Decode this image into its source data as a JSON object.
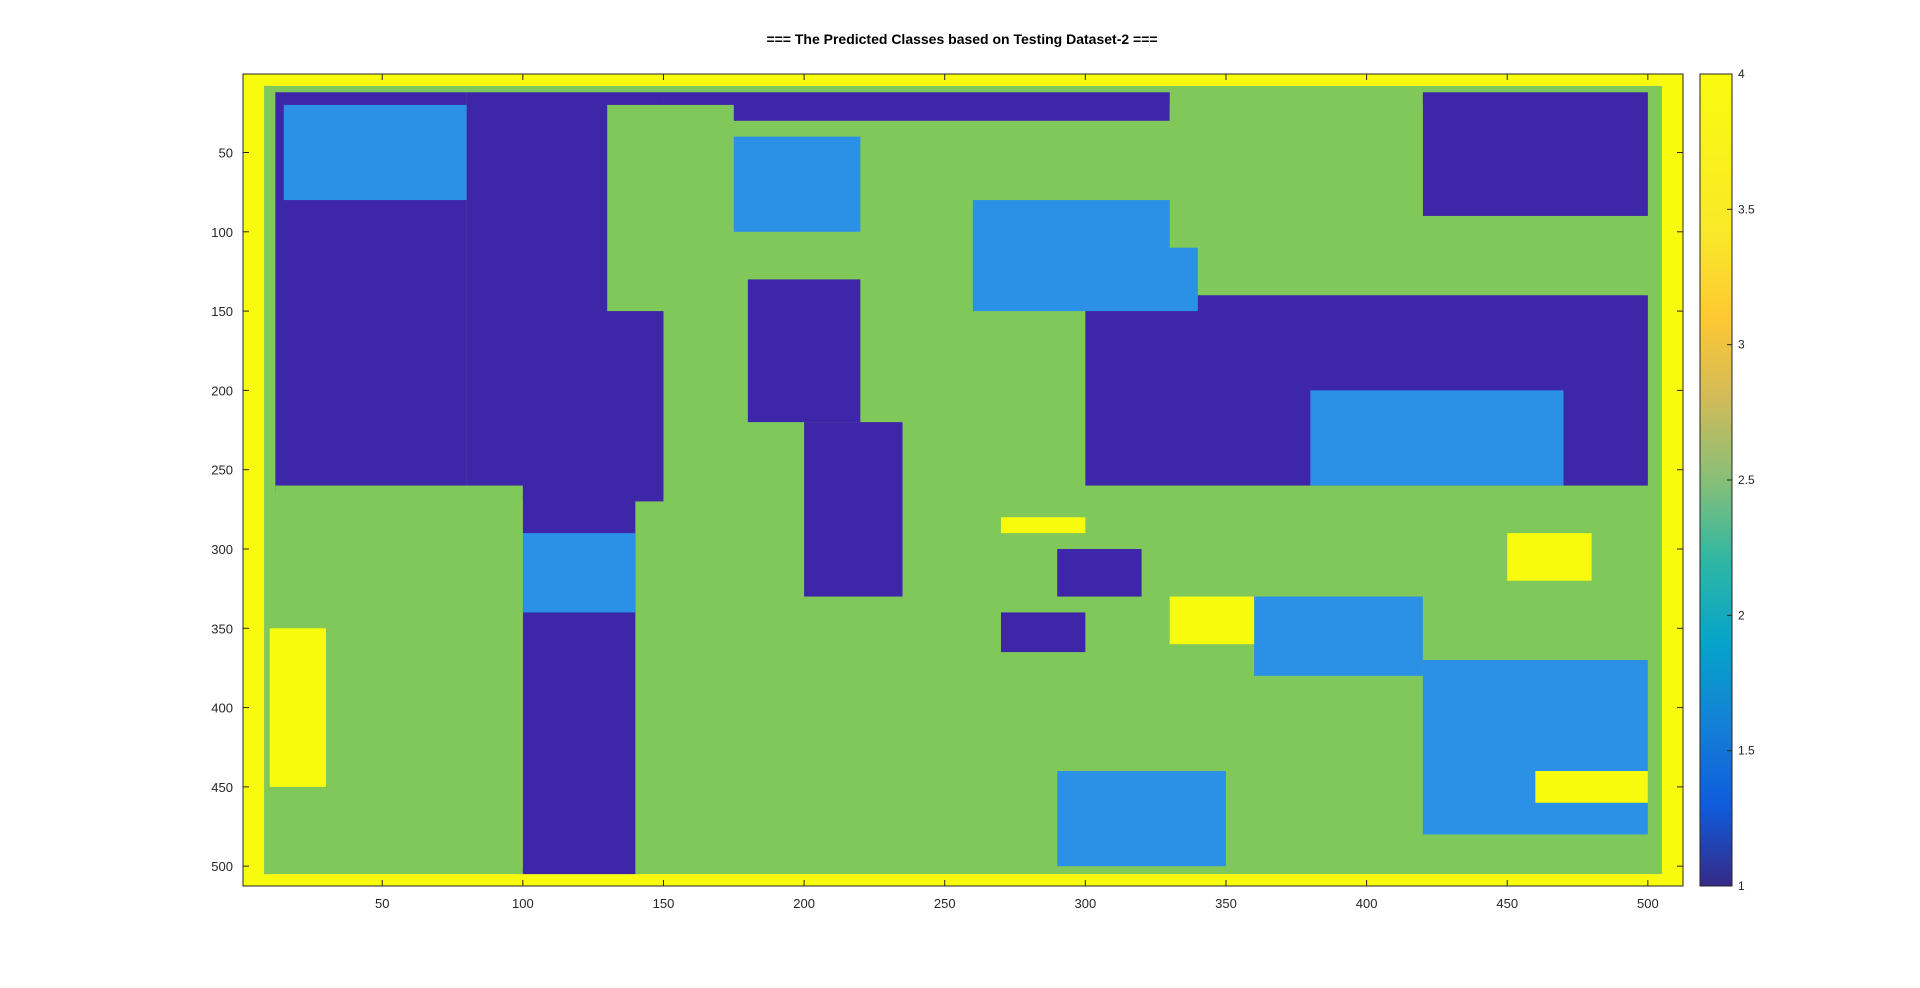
{
  "chart_data": {
    "type": "heatmap",
    "title": "=== The Predicted Classes based on Testing Dataset-2 ===",
    "xlabel": "",
    "ylabel": "",
    "xlim": [
      0.5,
      512.5
    ],
    "ylim": [
      0.5,
      512.5
    ],
    "y_reversed": true,
    "x_ticks": [
      50,
      100,
      150,
      200,
      250,
      300,
      350,
      400,
      450,
      500
    ],
    "y_ticks": [
      50,
      100,
      150,
      200,
      250,
      300,
      350,
      400,
      450,
      500
    ],
    "colorbar": {
      "min": 1,
      "max": 4,
      "ticks": [
        1,
        1.5,
        2,
        2.5,
        3,
        3.5,
        4
      ],
      "tick_labels": [
        "1",
        "1.5",
        "2",
        "2.5",
        "3",
        "3.5",
        "4"
      ],
      "colormap": "parula"
    },
    "classes": [
      {
        "value": 1,
        "color": "#3e26a8"
      },
      {
        "value": 2,
        "color": "#2b91e6"
      },
      {
        "value": 3,
        "color": "#80c85a"
      },
      {
        "value": 4,
        "color": "#f9fb0e"
      }
    ],
    "grid": false,
    "regions": [
      {
        "class": 4,
        "x": [
          0.5,
          512.5
        ],
        "y": [
          0.5,
          512.5
        ]
      },
      {
        "class": 3,
        "x": [
          8,
          505
        ],
        "y": [
          8,
          505
        ]
      },
      {
        "class": 1,
        "x": [
          12,
          80
        ],
        "y": [
          12,
          265
        ]
      },
      {
        "class": 1,
        "x": [
          80,
          150
        ],
        "y": [
          12,
          270
        ]
      },
      {
        "class": 1,
        "x": [
          100,
          140
        ],
        "y": [
          260,
          505
        ]
      },
      {
        "class": 1,
        "x": [
          150,
          330
        ],
        "y": [
          12,
          30
        ]
      },
      {
        "class": 1,
        "x": [
          180,
          220
        ],
        "y": [
          130,
          220
        ]
      },
      {
        "class": 1,
        "x": [
          200,
          235
        ],
        "y": [
          220,
          330
        ]
      },
      {
        "class": 1,
        "x": [
          300,
          500
        ],
        "y": [
          140,
          260
        ]
      },
      {
        "class": 1,
        "x": [
          420,
          500
        ],
        "y": [
          12,
          90
        ]
      },
      {
        "class": 1,
        "x": [
          290,
          320
        ],
        "y": [
          300,
          330
        ]
      },
      {
        "class": 1,
        "x": [
          270,
          300
        ],
        "y": [
          340,
          365
        ]
      },
      {
        "class": 2,
        "x": [
          15,
          80
        ],
        "y": [
          20,
          80
        ]
      },
      {
        "class": 2,
        "x": [
          155,
          220
        ],
        "y": [
          40,
          100
        ]
      },
      {
        "class": 2,
        "x": [
          260,
          340
        ],
        "y": [
          80,
          150
        ]
      },
      {
        "class": 2,
        "x": [
          380,
          470
        ],
        "y": [
          200,
          260
        ]
      },
      {
        "class": 2,
        "x": [
          100,
          140
        ],
        "y": [
          290,
          340
        ]
      },
      {
        "class": 2,
        "x": [
          420,
          500
        ],
        "y": [
          370,
          480
        ]
      },
      {
        "class": 2,
        "x": [
          290,
          350
        ],
        "y": [
          440,
          500
        ]
      },
      {
        "class": 2,
        "x": [
          360,
          420
        ],
        "y": [
          330,
          380
        ]
      },
      {
        "class": 3,
        "x": [
          130,
          175
        ],
        "y": [
          20,
          150
        ]
      },
      {
        "class": 3,
        "x": [
          330,
          420
        ],
        "y": [
          20,
          110
        ]
      },
      {
        "class": 3,
        "x": [
          12,
          100
        ],
        "y": [
          260,
          500
        ]
      },
      {
        "class": 4,
        "x": [
          10,
          30
        ],
        "y": [
          350,
          450
        ]
      },
      {
        "class": 4,
        "x": [
          330,
          360
        ],
        "y": [
          330,
          360
        ]
      },
      {
        "class": 4,
        "x": [
          450,
          480
        ],
        "y": [
          290,
          320
        ]
      },
      {
        "class": 4,
        "x": [
          270,
          300
        ],
        "y": [
          280,
          290
        ]
      },
      {
        "class": 4,
        "x": [
          460,
          500
        ],
        "y": [
          440,
          460
        ]
      }
    ]
  }
}
